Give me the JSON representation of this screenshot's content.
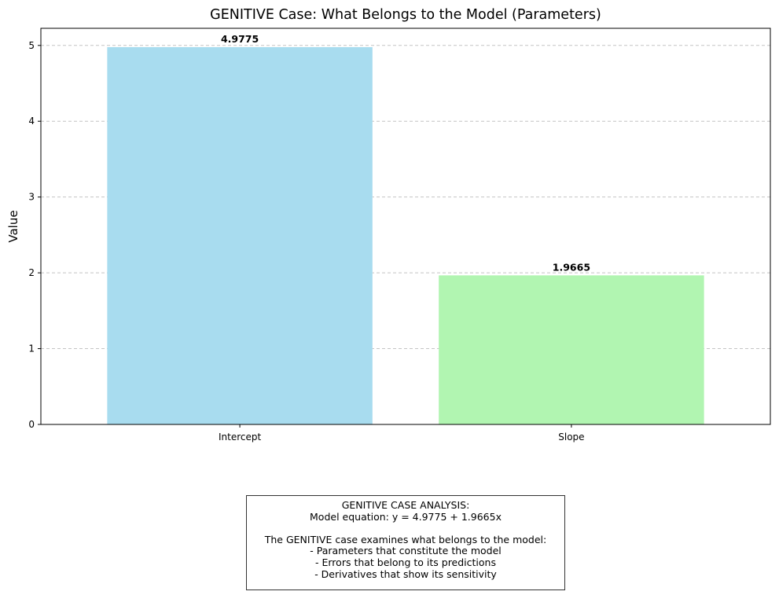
{
  "chart_data": {
    "type": "bar",
    "title": "GENITIVE Case: What Belongs to the Model (Parameters)",
    "xlabel": "",
    "ylabel": "Value",
    "categories": [
      "Intercept",
      "Slope"
    ],
    "values": [
      4.9775,
      1.9665
    ],
    "value_labels": [
      "4.9775",
      "1.9665"
    ],
    "colors": [
      "#a8dcef",
      "#b1f5b1"
    ],
    "ylim": [
      0,
      5.226
    ],
    "yticks": [
      0,
      1,
      2,
      3,
      4,
      5
    ],
    "ytick_labels": [
      "0",
      "1",
      "2",
      "3",
      "4",
      "5"
    ],
    "grid": "y-dashed",
    "legend": "none"
  },
  "info_box": {
    "lines": [
      "GENITIVE CASE ANALYSIS:",
      "Model equation: y = 4.9775 + 1.9665x",
      "",
      "The GENITIVE case examines what belongs to the model:",
      "- Parameters that constitute the model",
      "- Errors that belong to its predictions",
      "- Derivatives that show its sensitivity"
    ]
  }
}
